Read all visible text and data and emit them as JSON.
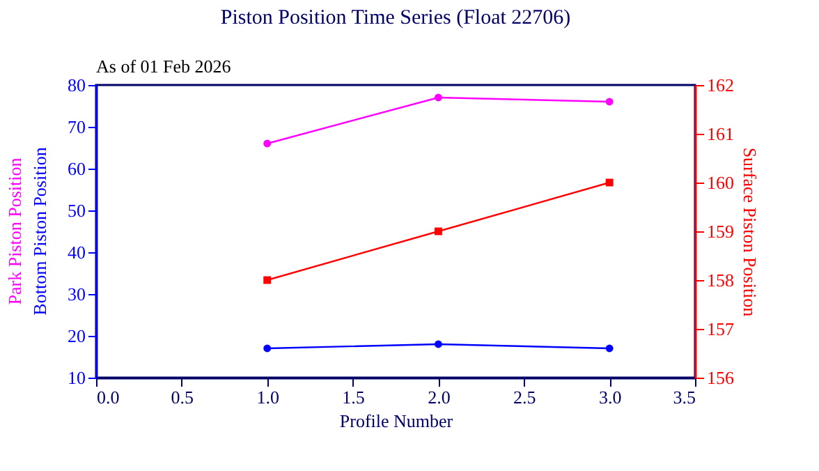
{
  "chart_data": {
    "type": "line",
    "title": "Piston Position Time Series (Float 22706)",
    "xlabel": "Profile Number",
    "annotations": [
      "As of 01 Feb 2026"
    ],
    "x": [
      1,
      2,
      3
    ],
    "series": [
      {
        "name": "Park Piston Position",
        "color": "#ff00ff",
        "values": [
          66,
          77,
          76
        ],
        "marker": "circle"
      },
      {
        "name": "Bottom Piston Position",
        "color": "#0000ff",
        "values": [
          17,
          18,
          17
        ],
        "marker": "circle"
      },
      {
        "name": "Surface Piston Position",
        "color": "#ff0000",
        "values": [
          158,
          159,
          160
        ],
        "marker": "square",
        "axis": "y2"
      }
    ],
    "xlim": [
      0,
      3.5
    ],
    "xticks": [
      {
        "value": 0,
        "label": "0.0"
      },
      0.5,
      {
        "value": 1,
        "label": "1.0"
      },
      1.5,
      {
        "value": 2,
        "label": "2.0"
      },
      2.5,
      {
        "value": 3,
        "label": "3.0"
      },
      3.5
    ],
    "ylim": [
      10,
      80
    ],
    "yticks": [
      10,
      20,
      30,
      40,
      50,
      60,
      70,
      80
    ],
    "y2lim": [
      156,
      162
    ],
    "y2ticks": [
      156,
      157,
      158,
      159,
      160,
      161,
      162
    ],
    "line_style": "solid"
  }
}
